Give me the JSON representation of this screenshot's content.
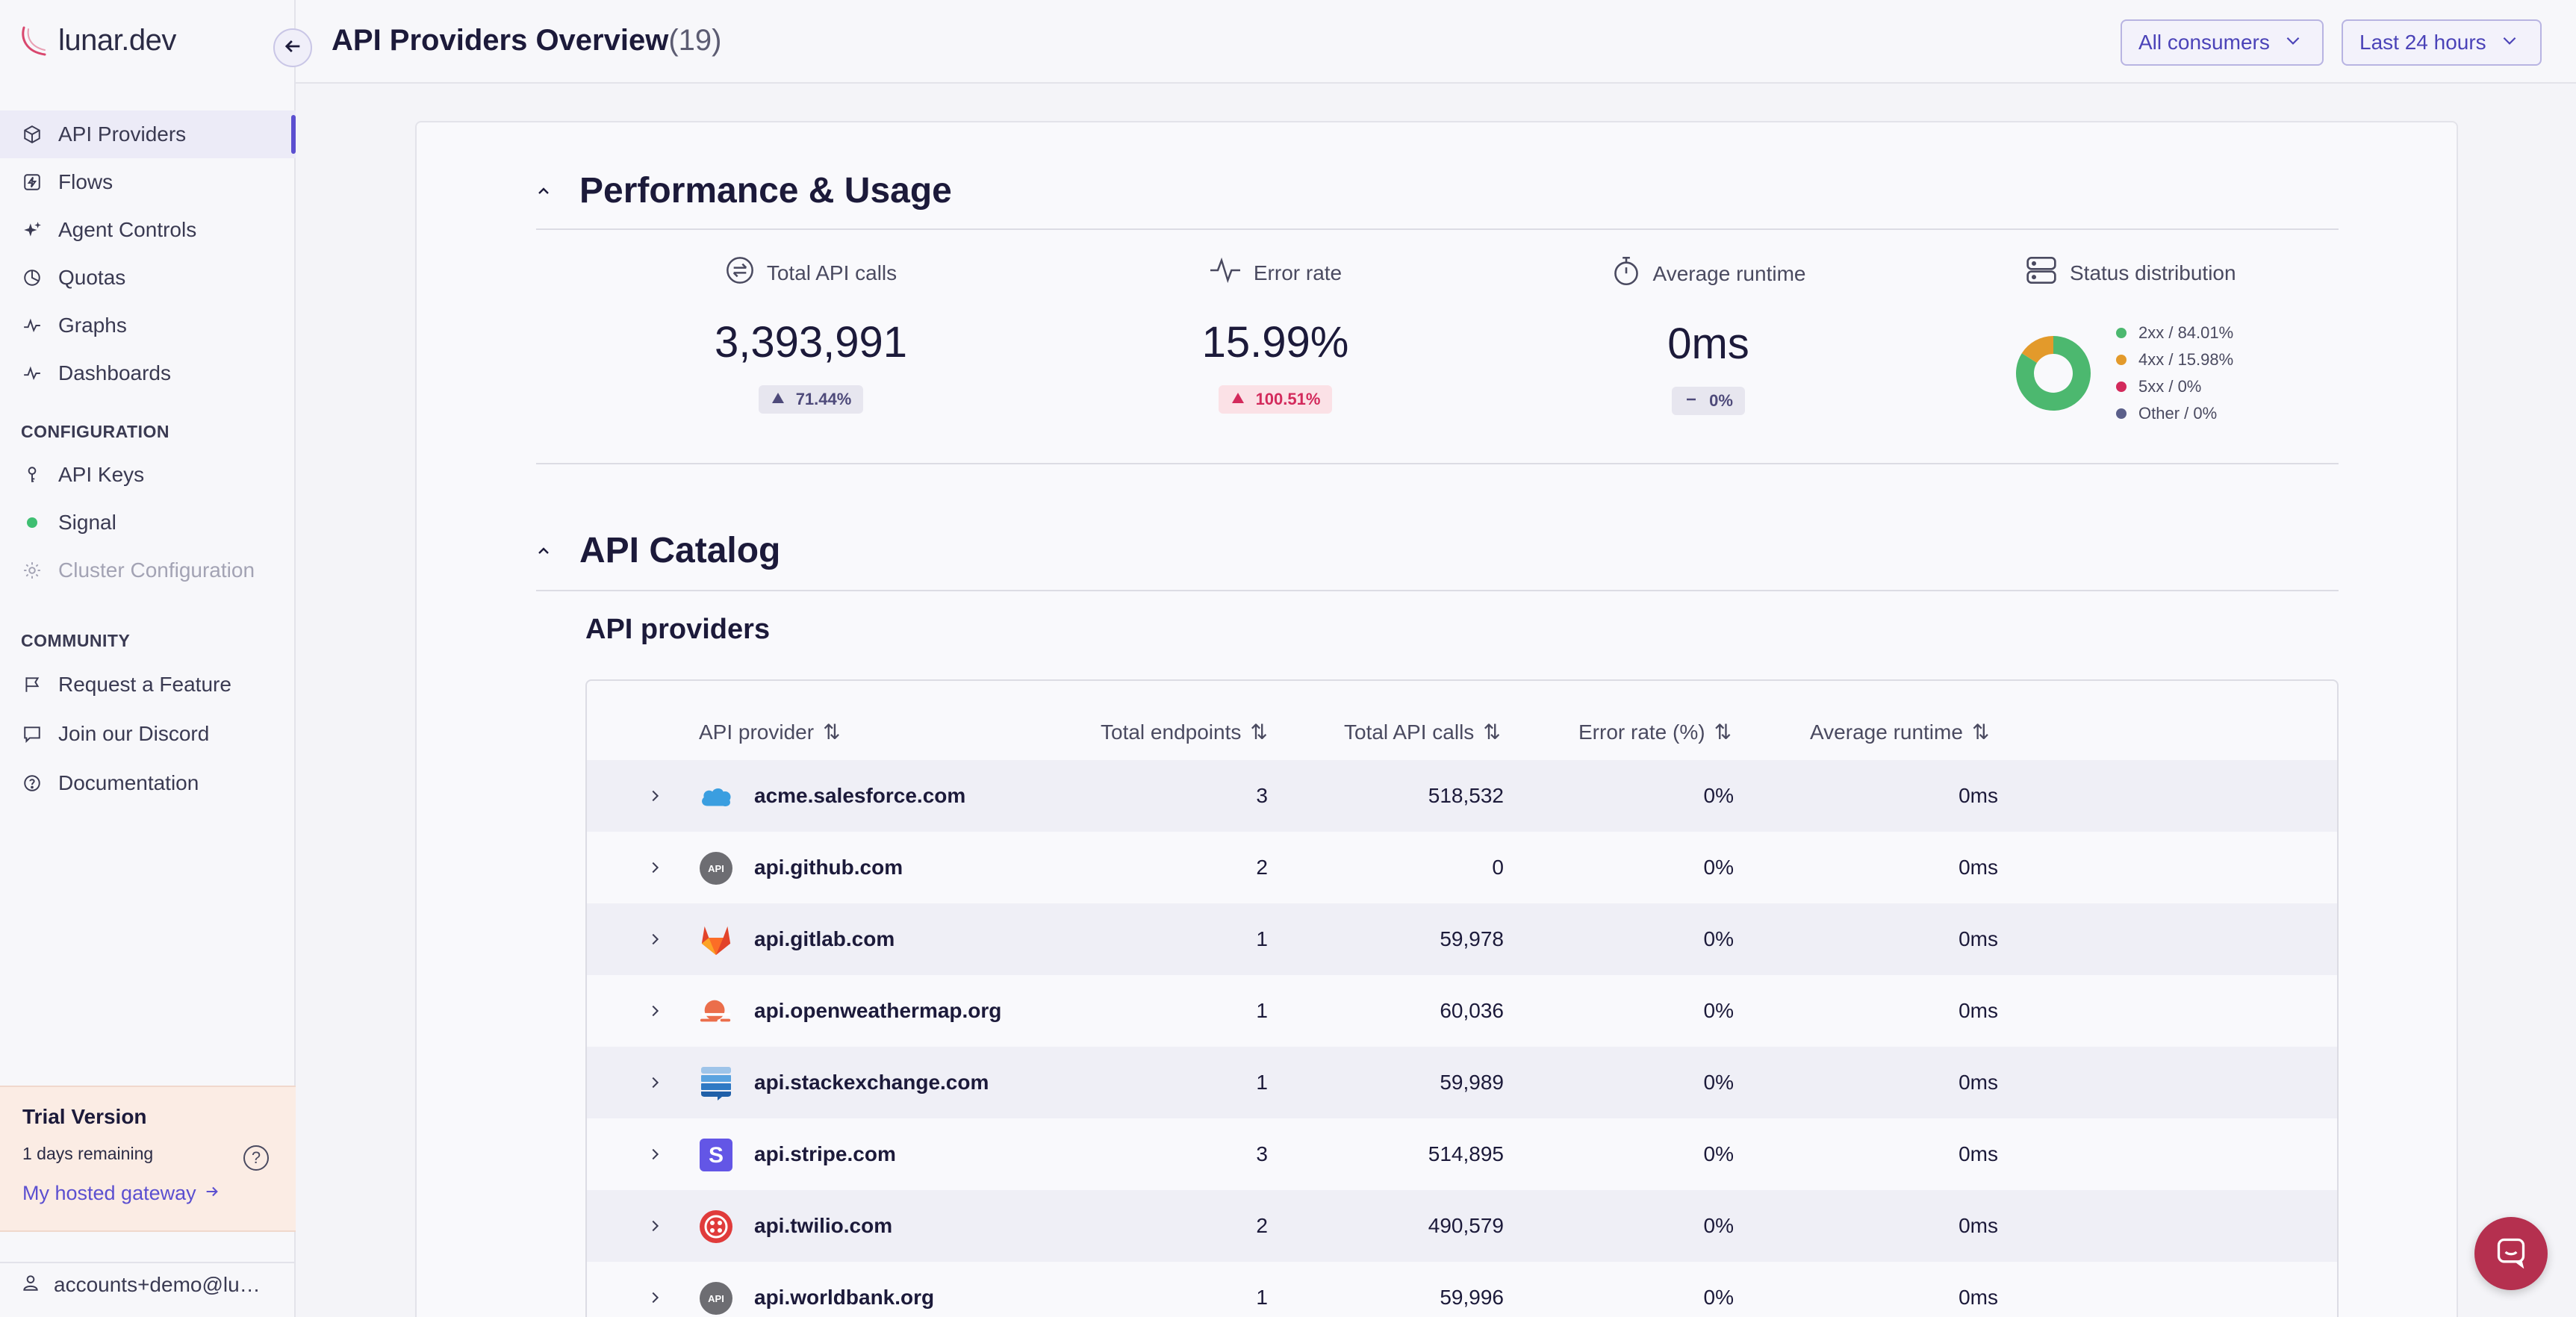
{
  "app": {
    "logo_text": "lunar.dev"
  },
  "header": {
    "title": "API Providers Overview",
    "count": "(19)",
    "consumers_dropdown": "All consumers",
    "time_dropdown": "Last 24 hours"
  },
  "sidebar": {
    "items": [
      {
        "label": "API Providers",
        "icon": "cube-icon"
      },
      {
        "label": "Flows",
        "icon": "bolt-icon"
      },
      {
        "label": "Agent Controls",
        "icon": "sparkle-icon"
      },
      {
        "label": "Quotas",
        "icon": "pie-icon"
      },
      {
        "label": "Graphs",
        "icon": "pulse-icon"
      },
      {
        "label": "Dashboards",
        "icon": "pulse-icon"
      }
    ],
    "configuration_label": "CONFIGURATION",
    "configuration_items": [
      {
        "label": "API Keys",
        "icon": "key-icon"
      },
      {
        "label": "Signal",
        "icon": "status-dot-icon"
      },
      {
        "label": "Cluster Configuration",
        "icon": "gear-icon"
      }
    ],
    "community_label": "COMMUNITY",
    "community_items": [
      {
        "label": "Request a Feature",
        "icon": "flag-icon"
      },
      {
        "label": "Join our Discord",
        "icon": "chat-icon"
      },
      {
        "label": "Documentation",
        "icon": "help-icon"
      }
    ],
    "trial": {
      "title": "Trial Version",
      "remaining": "1 days remaining",
      "link": "My hosted gateway"
    },
    "account": "accounts+demo@lu…"
  },
  "performance": {
    "title": "Performance & Usage",
    "total_calls": {
      "label": "Total API calls",
      "value": "3,393,991",
      "change": "71.44%"
    },
    "error_rate": {
      "label": "Error rate",
      "value": "15.99%",
      "change": "100.51%"
    },
    "avg_runtime": {
      "label": "Average runtime",
      "value": "0ms",
      "change": "0%"
    },
    "status_distribution": {
      "label": "Status distribution",
      "legend": [
        {
          "label": "2xx / 84.01%",
          "color": "#4cb86f",
          "share": 84.01
        },
        {
          "label": "4xx / 15.98%",
          "color": "#e39a2b",
          "share": 15.98
        },
        {
          "label": "5xx / 0%",
          "color": "#d32a5c",
          "share": 0
        },
        {
          "label": "Other / 0%",
          "color": "#5b5f8a",
          "share": 0
        }
      ]
    }
  },
  "catalog": {
    "title": "API Catalog",
    "subtitle": "API providers",
    "columns": [
      "API provider",
      "Total endpoints",
      "Total API calls",
      "Error rate (%)",
      "Average runtime"
    ],
    "rows": [
      {
        "name": "acme.salesforce.com",
        "logo": "salesforce-logo",
        "endpoints": "3",
        "calls": "518,532",
        "error": "0%",
        "runtime": "0ms"
      },
      {
        "name": "api.github.com",
        "logo": "api-logo",
        "endpoints": "2",
        "calls": "0",
        "error": "0%",
        "runtime": "0ms"
      },
      {
        "name": "api.gitlab.com",
        "logo": "gitlab-logo",
        "endpoints": "1",
        "calls": "59,978",
        "error": "0%",
        "runtime": "0ms"
      },
      {
        "name": "api.openweathermap.org",
        "logo": "openweather-logo",
        "endpoints": "1",
        "calls": "60,036",
        "error": "0%",
        "runtime": "0ms"
      },
      {
        "name": "api.stackexchange.com",
        "logo": "stackexchange-logo",
        "endpoints": "1",
        "calls": "59,989",
        "error": "0%",
        "runtime": "0ms"
      },
      {
        "name": "api.stripe.com",
        "logo": "stripe-logo",
        "endpoints": "3",
        "calls": "514,895",
        "error": "0%",
        "runtime": "0ms"
      },
      {
        "name": "api.twilio.com",
        "logo": "twilio-logo",
        "endpoints": "2",
        "calls": "490,579",
        "error": "0%",
        "runtime": "0ms"
      },
      {
        "name": "api.worldbank.org",
        "logo": "api-logo",
        "endpoints": "1",
        "calls": "59,996",
        "error": "0%",
        "runtime": "0ms"
      }
    ],
    "api_badge_text": "API"
  }
}
